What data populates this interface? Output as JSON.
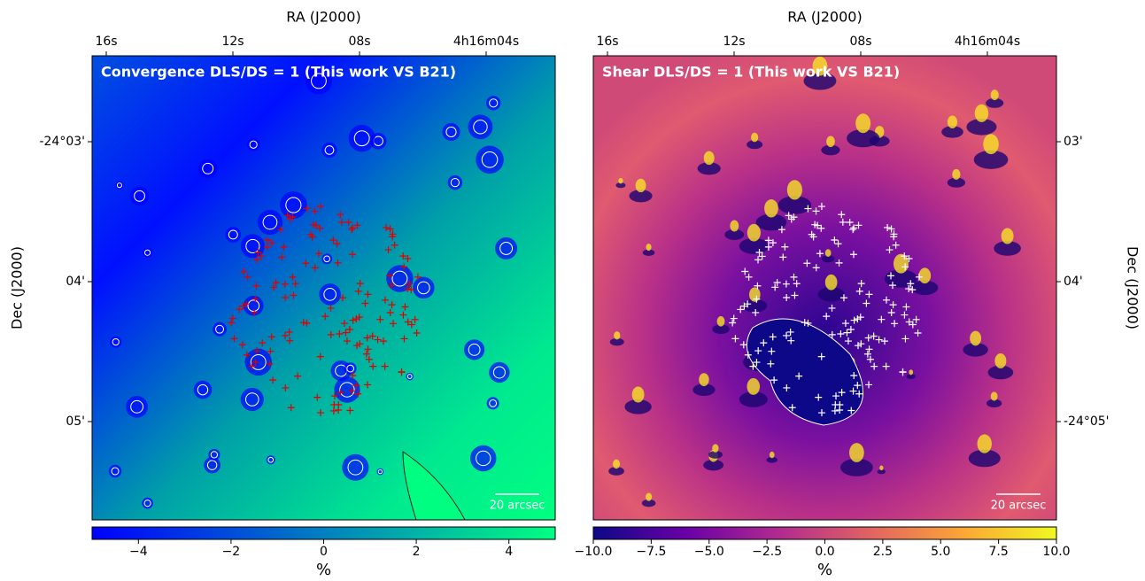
{
  "chart_data": [
    {
      "type": "image",
      "title": "Convergence DLS/DS = 1 (This work VS B21)",
      "x_label": "RA (J2000)",
      "y_label": "Dec (J2000)",
      "x_tick_labels": [
        "16s",
        "12s",
        "08s",
        "4h16m04s"
      ],
      "y_tick_labels": [
        "-24°03'",
        "04'",
        "05'"
      ],
      "scale_bar": "20 arcsec",
      "colorbar": {
        "label": "%",
        "colormap": [
          "#0000ff",
          "#0080c0",
          "#00ff80"
        ],
        "clim": [
          -5,
          5
        ],
        "ticks": [
          {
            "value": -4,
            "label": "−4"
          },
          {
            "value": -2,
            "label": "−2"
          },
          0,
          2,
          4
        ]
      }
    },
    {
      "type": "image",
      "title": "Shear DLS/DS = 1 (This work VS B21)",
      "x_label": "RA (J2000)",
      "y_label": "Dec (J2000)",
      "x_tick_labels": [
        "16s",
        "12s",
        "08s",
        "4h16m04s"
      ],
      "y_tick_labels": [
        "03'",
        "04'",
        "-24°05'"
      ],
      "scale_bar": "20 arcsec",
      "colorbar": {
        "label": "%",
        "colormap": [
          "#0d0887",
          "#6a00a8",
          "#b12a90",
          "#e16462",
          "#fca636",
          "#f0f921"
        ],
        "clim": [
          -10,
          10
        ],
        "ticks": [
          {
            "value": -10,
            "label": "−10.0"
          },
          {
            "value": -7.5,
            "label": "−7.5"
          },
          {
            "value": -5,
            "label": "−5.0"
          },
          {
            "value": -2.5,
            "label": "−2.5"
          },
          {
            "value": 0,
            "label": "0.0"
          },
          {
            "value": 2.5,
            "label": "2.5"
          },
          {
            "value": 5,
            "label": "5.0"
          },
          {
            "value": 7.5,
            "label": "7.5"
          },
          {
            "value": 10,
            "label": "10.0"
          }
        ]
      }
    }
  ]
}
